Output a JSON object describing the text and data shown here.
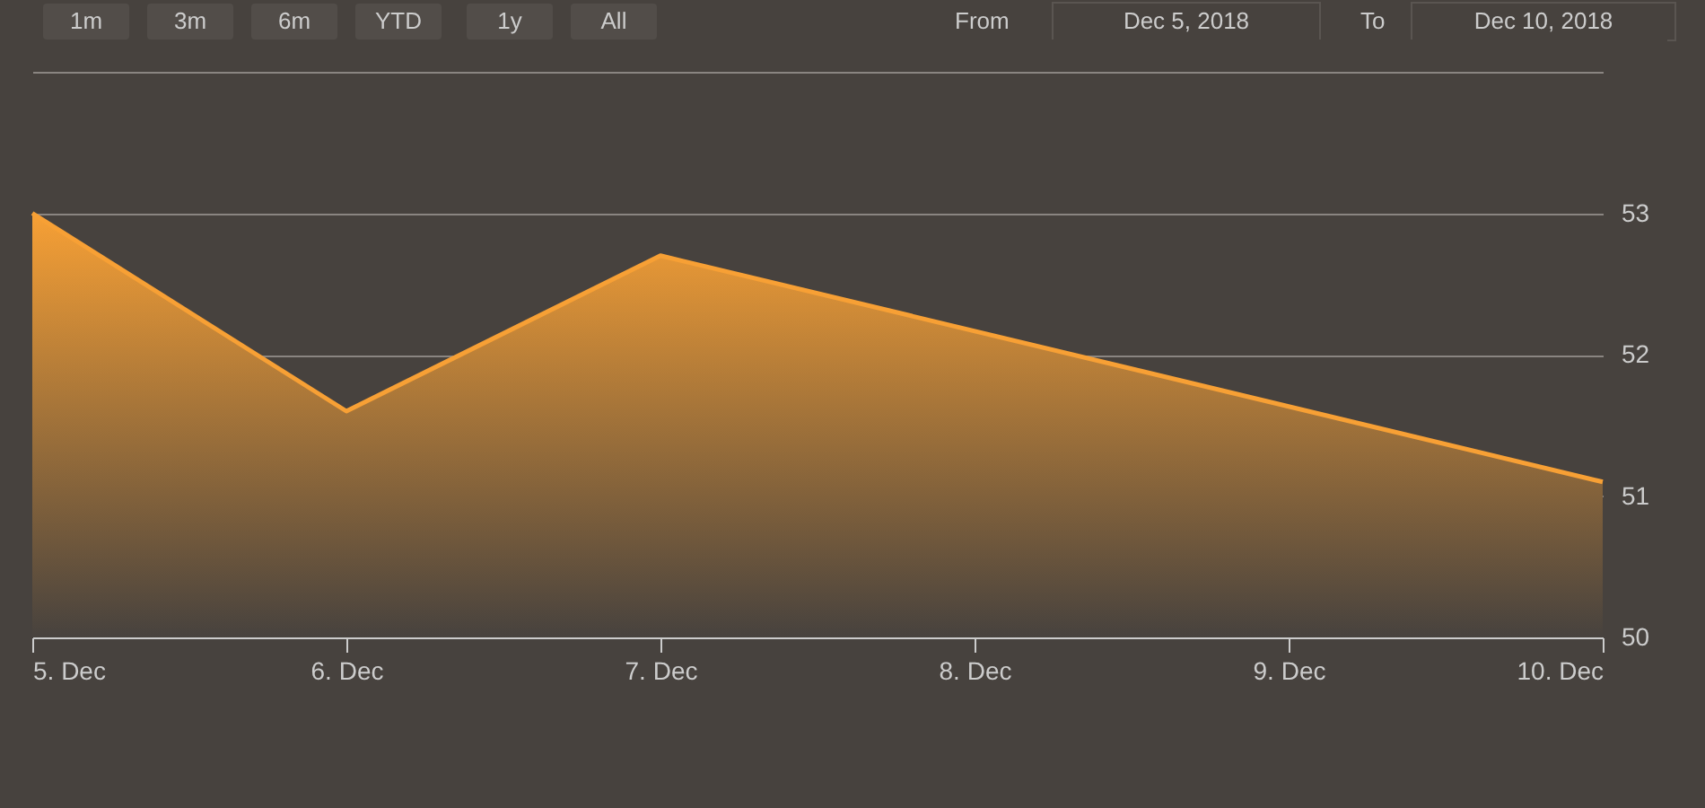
{
  "chart_data": {
    "type": "area",
    "x": [
      "2018-12-05",
      "2018-12-06",
      "2018-12-07",
      "2018-12-10"
    ],
    "series": [
      {
        "color": "#f7a035",
        "values": [
          53.0,
          51.6,
          52.7,
          51.1
        ]
      }
    ],
    "xlim": [
      "2018-12-05",
      "2018-12-10"
    ],
    "xticks": [
      {
        "value": "2018-12-05",
        "label": "5. Dec"
      },
      {
        "value": "2018-12-06",
        "label": "6. Dec"
      },
      {
        "value": "2018-12-07",
        "label": "7. Dec"
      },
      {
        "value": "2018-12-08",
        "label": "8. Dec"
      },
      {
        "value": "2018-12-09",
        "label": "9. Dec"
      },
      {
        "value": "2018-12-10",
        "label": "10. Dec"
      }
    ],
    "ylim": [
      50,
      54
    ],
    "yticks": [
      50,
      51,
      52,
      53,
      {
        "value": 54,
        "label": null
      }
    ],
    "grid": "y",
    "annotations": [
      "1m",
      "3m",
      "6m",
      "YTD",
      "1y",
      "All",
      "From",
      "Dec 5, 2018",
      "To",
      "Dec 10, 2018"
    ]
  }
}
